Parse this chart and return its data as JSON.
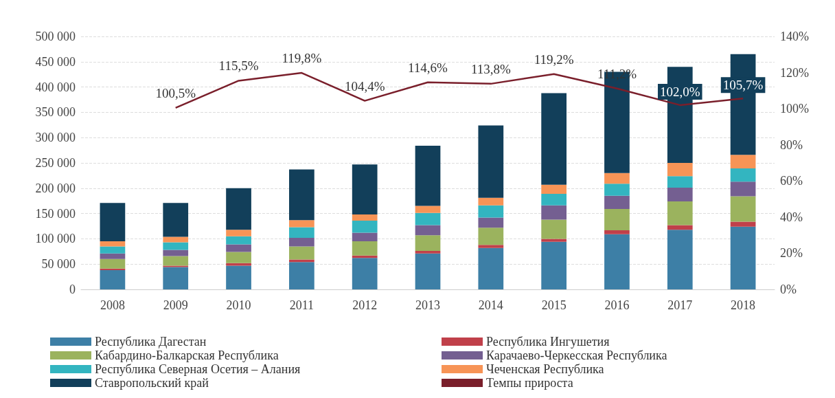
{
  "chart_data": {
    "type": "bar",
    "stacked": true,
    "categories": [
      "2008",
      "2009",
      "2010",
      "2011",
      "2012",
      "2013",
      "2014",
      "2015",
      "2016",
      "2017",
      "2018"
    ],
    "ylim": [
      0,
      500000
    ],
    "yticks": [
      {
        "value": 0,
        "label": "0"
      },
      {
        "value": 50000,
        "label": "50 000"
      },
      {
        "value": 100000,
        "label": "100 000"
      },
      {
        "value": 150000,
        "label": "150 000"
      },
      {
        "value": 200000,
        "label": "200 000"
      },
      {
        "value": 250000,
        "label": "250 000"
      },
      {
        "value": 300000,
        "label": "300 000"
      },
      {
        "value": 350000,
        "label": "350 000"
      },
      {
        "value": 400000,
        "label": "400 000"
      },
      {
        "value": 450000,
        "label": "450 000"
      },
      {
        "value": 500000,
        "label": "500 000"
      }
    ],
    "y2lim": [
      0,
      140
    ],
    "y2ticks": [
      {
        "value": 0,
        "label": "0%"
      },
      {
        "value": 20,
        "label": "20%"
      },
      {
        "value": 40,
        "label": "40%"
      },
      {
        "value": 60,
        "label": "60%"
      },
      {
        "value": 80,
        "label": "80%"
      },
      {
        "value": 100,
        "label": "100%"
      },
      {
        "value": 120,
        "label": "120%"
      },
      {
        "value": 140,
        "label": "140%"
      }
    ],
    "grid": "y",
    "legend": "bottom",
    "series": [
      {
        "name": "Республика Дагестан",
        "color": "#3d7fa6",
        "values": [
          38000,
          44000,
          47000,
          54000,
          62000,
          71000,
          82000,
          94000,
          109000,
          118000,
          124000
        ]
      },
      {
        "name": "Республика Ингушетия",
        "color": "#c0404a",
        "values": [
          3000,
          3000,
          5000,
          5000,
          5000,
          5000,
          6000,
          6000,
          8000,
          9000,
          10000
        ]
      },
      {
        "name": "Кабардино-Балкарская Республика",
        "color": "#9bb35e",
        "values": [
          19000,
          19000,
          22000,
          26000,
          28000,
          31000,
          34000,
          38000,
          42000,
          47000,
          50000
        ]
      },
      {
        "name": "Карачаево-Черкесская Республика",
        "color": "#745f91",
        "values": [
          11000,
          12000,
          15000,
          17000,
          17000,
          20000,
          20000,
          28000,
          26000,
          27000,
          29000
        ]
      },
      {
        "name": "Республика Северная Осетия – Алания",
        "color": "#33b5c0",
        "values": [
          14000,
          15000,
          16000,
          21000,
          24000,
          24000,
          24000,
          23000,
          24000,
          23000,
          26000
        ]
      },
      {
        "name": "Чеченская Республика",
        "color": "#f79456",
        "values": [
          10000,
          11000,
          13000,
          14000,
          12000,
          14000,
          15000,
          18000,
          21000,
          26000,
          27000
        ]
      },
      {
        "name": "Ставропольский край",
        "color": "#123f5a",
        "values": [
          76000,
          67000,
          82000,
          100000,
          99000,
          119000,
          143000,
          181000,
          200000,
          190000,
          199000
        ]
      },
      {
        "name": "Темпы прироста",
        "type": "line",
        "axis": "y2",
        "color": "#7a1f2b",
        "marker": "none",
        "values": [
          null,
          100.5,
          115.5,
          119.8,
          104.4,
          114.6,
          113.8,
          119.2,
          111.2,
          102.0,
          105.7
        ],
        "value_labels": [
          null,
          "100,5%",
          "115,5%",
          "119,8%",
          "104,4%",
          "114,6%",
          "113,8%",
          "119,2%",
          "111,2%",
          "102,0%",
          "105,7%"
        ]
      }
    ]
  }
}
